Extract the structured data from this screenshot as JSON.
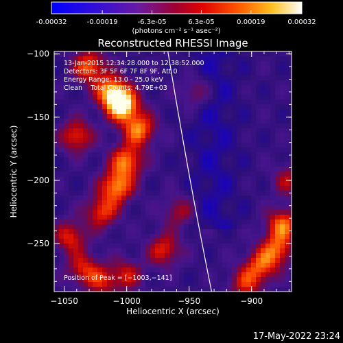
{
  "colors": {
    "background": "#000000",
    "text": "#ffffff",
    "limb_line": "#ffffff"
  },
  "colorbar": {
    "tick_labels": [
      "-0.00032",
      "-0.00019",
      "-6.3e-05",
      "6.3e-05",
      "0.00019",
      "0.00032"
    ],
    "tick_values": [
      -0.00032,
      -0.00019,
      -6.3e-05,
      6.3e-05,
      0.00019,
      0.00032
    ],
    "range": [
      -0.00032,
      0.00032
    ],
    "colormap": "blue-purple-red-orange-yellow-white",
    "units_label": "(photons cm⁻² s⁻¹ asec⁻²)"
  },
  "chart_data": {
    "type": "heatmap",
    "title": "Reconstructed RHESSI Image",
    "xlabel": "Heliocentric X (arcsec)",
    "ylabel": "Heliocentric Y (arcsec)",
    "xlim": [
      -1058,
      -868
    ],
    "ylim": [
      -288,
      -98
    ],
    "x_ticks": [
      -1050,
      -1000,
      -950,
      -900
    ],
    "x_tick_labels": [
      "−1050",
      "−1000",
      "−950",
      "−900"
    ],
    "y_ticks": [
      -250,
      -200,
      -150,
      -100
    ],
    "y_tick_labels": [
      "−250",
      "−200",
      "−150",
      "−100"
    ],
    "grid": false,
    "annotations": [
      "13-Jan-2015 12:34:28.000 to 12:38:52.000",
      "Detectors: 3F 5F 6F 7F 8F 9F, Att 0",
      "Energy Range: 13.0 - 25.0 keV",
      "Clean    Total Counts: 4.79E+03"
    ],
    "peak_label": "Position of Peak = [−1003,−141]",
    "peak_position": [
      -1003,
      -141
    ],
    "limb_curve": [
      [
        -967,
        -98
      ],
      [
        -950,
        -200
      ],
      [
        -932,
        -288
      ]
    ],
    "hotspots": [
      {
        "x": -1003,
        "y": -141,
        "intensity": 1.0
      },
      {
        "x": -1012,
        "y": -130,
        "intensity": 0.85
      },
      {
        "x": -1030,
        "y": -110,
        "intensity": 0.7
      },
      {
        "x": -990,
        "y": -160,
        "intensity": 0.75
      },
      {
        "x": -1000,
        "y": -185,
        "intensity": 0.75
      },
      {
        "x": -1008,
        "y": -205,
        "intensity": 0.8
      },
      {
        "x": -1020,
        "y": -225,
        "intensity": 0.6
      },
      {
        "x": -1040,
        "y": -165,
        "intensity": 0.6
      },
      {
        "x": -1045,
        "y": -245,
        "intensity": 0.55
      },
      {
        "x": -1035,
        "y": -270,
        "intensity": 0.5
      },
      {
        "x": -1000,
        "y": -275,
        "intensity": 0.45
      },
      {
        "x": -970,
        "y": -255,
        "intensity": 0.55
      },
      {
        "x": -958,
        "y": -225,
        "intensity": 0.4
      },
      {
        "x": -945,
        "y": -130,
        "intensity": 0.35
      },
      {
        "x": -875,
        "y": -235,
        "intensity": 0.7
      },
      {
        "x": -880,
        "y": -255,
        "intensity": 0.65
      },
      {
        "x": -893,
        "y": -268,
        "intensity": 0.6
      },
      {
        "x": -905,
        "y": -282,
        "intensity": 0.5
      },
      {
        "x": -870,
        "y": -200,
        "intensity": 0.4
      },
      {
        "x": -1020,
        "y": -280,
        "intensity": 0.45
      }
    ]
  },
  "footer": {
    "timestamp": "17-May-2022 23:24"
  }
}
